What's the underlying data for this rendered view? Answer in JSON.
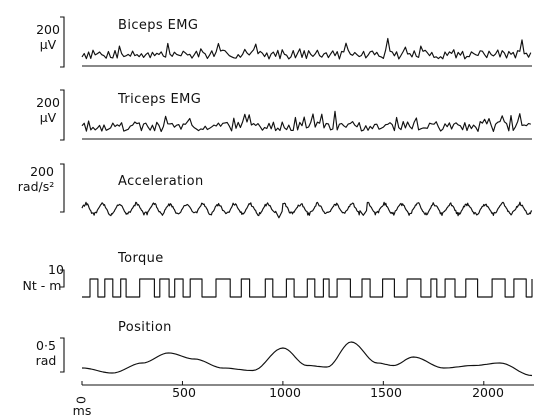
{
  "chart_data": {
    "type": "line",
    "x_unit": "ms",
    "x_ticks": [
      0,
      500,
      1000,
      1500,
      2000
    ],
    "x_range": [
      0,
      2240
    ],
    "traces": [
      {
        "name": "Biceps EMG",
        "scale_value": "200",
        "scale_unit": "µV",
        "kind": "emg",
        "baseline": 0,
        "seed": 7,
        "mean_amplitude": 40,
        "peaks": [
          {
            "x": 425,
            "y": 90
          },
          {
            "x": 860,
            "y": 95
          },
          {
            "x": 1080,
            "y": 80
          },
          {
            "x": 1520,
            "y": 115
          },
          {
            "x": 1690,
            "y": 90
          },
          {
            "x": 2190,
            "y": 90
          }
        ]
      },
      {
        "name": "Triceps EMG",
        "scale_value": "200",
        "scale_unit": "µV",
        "kind": "emg",
        "baseline": 0,
        "seed": 19,
        "mean_amplitude": 45,
        "peaks": [
          {
            "x": 420,
            "y": 110
          },
          {
            "x": 830,
            "y": 100
          },
          {
            "x": 1190,
            "y": 120
          },
          {
            "x": 1260,
            "y": 100
          },
          {
            "x": 1660,
            "y": 110
          },
          {
            "x": 2000,
            "y": 95
          }
        ]
      },
      {
        "name": "Acceleration",
        "scale_value": "200",
        "scale_unit": "rad/s²",
        "kind": "osc",
        "seed": 31,
        "amplitude": 55,
        "freq_hz": 12,
        "dips": [
          {
            "x": 980,
            "y": -70
          },
          {
            "x": 1400,
            "y": -50
          }
        ]
      },
      {
        "name": "Torque",
        "scale_value": "10",
        "scale_unit": "Nt - m",
        "kind": "square",
        "seed": 43,
        "high": 10,
        "low": 0
      },
      {
        "name": "Position",
        "scale_value": "0·5",
        "scale_unit": "rad",
        "kind": "smooth",
        "points": [
          [
            0,
            0.2
          ],
          [
            150,
            0.1
          ],
          [
            300,
            0.3
          ],
          [
            430,
            0.5
          ],
          [
            560,
            0.38
          ],
          [
            700,
            0.2
          ],
          [
            850,
            0.15
          ],
          [
            1000,
            0.6
          ],
          [
            1120,
            0.25
          ],
          [
            1220,
            0.22
          ],
          [
            1340,
            0.72
          ],
          [
            1470,
            0.3
          ],
          [
            1550,
            0.25
          ],
          [
            1650,
            0.42
          ],
          [
            1800,
            0.2
          ],
          [
            1950,
            0.25
          ],
          [
            2080,
            0.3
          ],
          [
            2240,
            0.05
          ]
        ]
      }
    ]
  }
}
